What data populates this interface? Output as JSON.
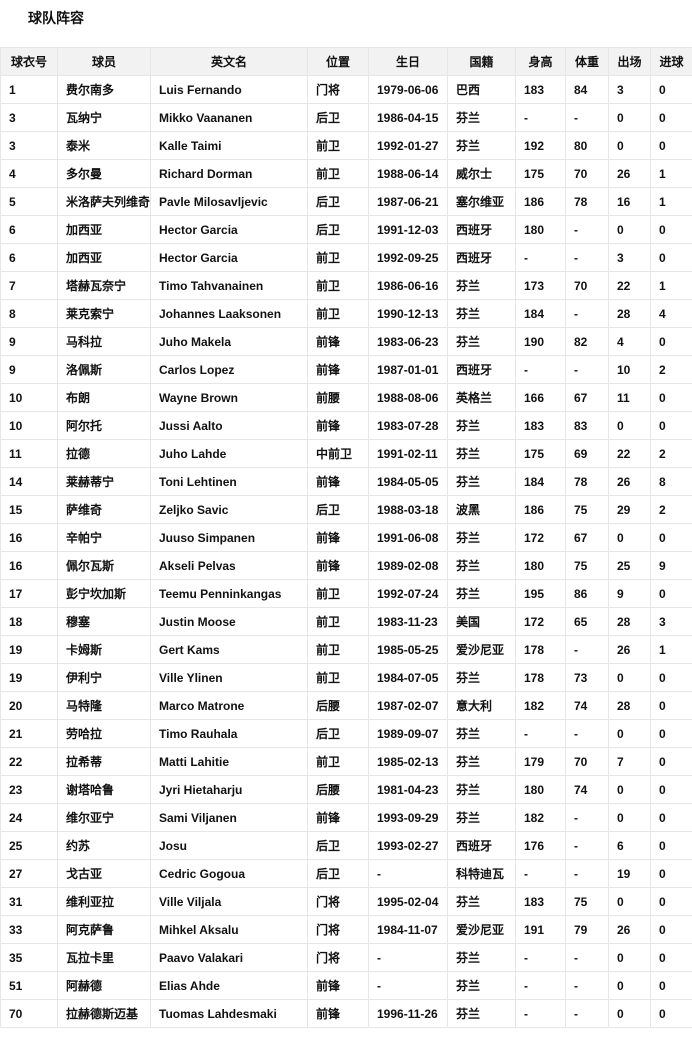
{
  "page": {
    "title": "球队阵容"
  },
  "roster_table": {
    "headers": [
      "球衣号",
      "球员",
      "英文名",
      "位置",
      "生日",
      "国籍",
      "身高",
      "体重",
      "出场",
      "进球"
    ],
    "rows": [
      [
        "1",
        "费尔南多",
        "Luis Fernando",
        "门将",
        "1979-06-06",
        "巴西",
        "183",
        "84",
        "3",
        "0"
      ],
      [
        "3",
        "瓦纳宁",
        "Mikko Vaananen",
        "后卫",
        "1986-04-15",
        "芬兰",
        "-",
        "-",
        "0",
        "0"
      ],
      [
        "3",
        "泰米",
        "Kalle Taimi",
        "前卫",
        "1992-01-27",
        "芬兰",
        "192",
        "80",
        "0",
        "0"
      ],
      [
        "4",
        "多尔曼",
        "Richard Dorman",
        "前卫",
        "1988-06-14",
        "威尔士",
        "175",
        "70",
        "26",
        "1"
      ],
      [
        "5",
        "米洛萨夫列维奇",
        "Pavle Milosavljevic",
        "后卫",
        "1987-06-21",
        "塞尔维亚",
        "186",
        "78",
        "16",
        "1"
      ],
      [
        "6",
        "加西亚",
        "Hector Garcia",
        "后卫",
        "1991-12-03",
        "西班牙",
        "180",
        "-",
        "0",
        "0"
      ],
      [
        "6",
        "加西亚",
        "Hector Garcia",
        "前卫",
        "1992-09-25",
        "西班牙",
        "-",
        "-",
        "3",
        "0"
      ],
      [
        "7",
        "塔赫瓦奈宁",
        "Timo Tahvanainen",
        "前卫",
        "1986-06-16",
        "芬兰",
        "173",
        "70",
        "22",
        "1"
      ],
      [
        "8",
        "莱克索宁",
        "Johannes Laaksonen",
        "前卫",
        "1990-12-13",
        "芬兰",
        "184",
        "-",
        "28",
        "4"
      ],
      [
        "9",
        "马科拉",
        "Juho Makela",
        "前锋",
        "1983-06-23",
        "芬兰",
        "190",
        "82",
        "4",
        "0"
      ],
      [
        "9",
        "洛佩斯",
        "Carlos Lopez",
        "前锋",
        "1987-01-01",
        "西班牙",
        "-",
        "-",
        "10",
        "2"
      ],
      [
        "10",
        "布朗",
        "Wayne Brown",
        "前腰",
        "1988-08-06",
        "英格兰",
        "166",
        "67",
        "11",
        "0"
      ],
      [
        "10",
        "阿尔托",
        "Jussi Aalto",
        "前锋",
        "1983-07-28",
        "芬兰",
        "183",
        "83",
        "0",
        "0"
      ],
      [
        "11",
        "拉德",
        "Juho Lahde",
        "中前卫",
        "1991-02-11",
        "芬兰",
        "175",
        "69",
        "22",
        "2"
      ],
      [
        "14",
        "莱赫蒂宁",
        "Toni Lehtinen",
        "前锋",
        "1984-05-05",
        "芬兰",
        "184",
        "78",
        "26",
        "8"
      ],
      [
        "15",
        "萨维奇",
        "Zeljko Savic",
        "后卫",
        "1988-03-18",
        "波黑",
        "186",
        "75",
        "29",
        "2"
      ],
      [
        "16",
        "辛帕宁",
        "Juuso Simpanen",
        "前锋",
        "1991-06-08",
        "芬兰",
        "172",
        "67",
        "0",
        "0"
      ],
      [
        "16",
        "佩尔瓦斯",
        "Akseli Pelvas",
        "前锋",
        "1989-02-08",
        "芬兰",
        "180",
        "75",
        "25",
        "9"
      ],
      [
        "17",
        "彭宁坎加斯",
        "Teemu Penninkangas",
        "前卫",
        "1992-07-24",
        "芬兰",
        "195",
        "86",
        "9",
        "0"
      ],
      [
        "18",
        "穆塞",
        "Justin Moose",
        "前卫",
        "1983-11-23",
        "美国",
        "172",
        "65",
        "28",
        "3"
      ],
      [
        "19",
        "卡姆斯",
        "Gert Kams",
        "前卫",
        "1985-05-25",
        "爱沙尼亚",
        "178",
        "-",
        "26",
        "1"
      ],
      [
        "19",
        "伊利宁",
        "Ville Ylinen",
        "前卫",
        "1984-07-05",
        "芬兰",
        "178",
        "73",
        "0",
        "0"
      ],
      [
        "20",
        "马特隆",
        "Marco Matrone",
        "后腰",
        "1987-02-07",
        "意大利",
        "182",
        "74",
        "28",
        "0"
      ],
      [
        "21",
        "劳哈拉",
        "Timo Rauhala",
        "后卫",
        "1989-09-07",
        "芬兰",
        "-",
        "-",
        "0",
        "0"
      ],
      [
        "22",
        "拉希蒂",
        "Matti Lahitie",
        "前卫",
        "1985-02-13",
        "芬兰",
        "179",
        "70",
        "7",
        "0"
      ],
      [
        "23",
        "谢塔哈鲁",
        "Jyri Hietaharju",
        "后腰",
        "1981-04-23",
        "芬兰",
        "180",
        "74",
        "0",
        "0"
      ],
      [
        "24",
        "维尔亚宁",
        "Sami Viljanen",
        "前锋",
        "1993-09-29",
        "芬兰",
        "182",
        "-",
        "0",
        "0"
      ],
      [
        "25",
        "约苏",
        "Josu",
        "后卫",
        "1993-02-27",
        "西班牙",
        "176",
        "-",
        "6",
        "0"
      ],
      [
        "27",
        "戈古亚",
        "Cedric Gogoua",
        "后卫",
        "-",
        "科特迪瓦",
        "-",
        "-",
        "19",
        "0"
      ],
      [
        "31",
        "维利亚拉",
        "Ville Viljala",
        "门将",
        "1995-02-04",
        "芬兰",
        "183",
        "75",
        "0",
        "0"
      ],
      [
        "33",
        "阿克萨鲁",
        "Mihkel Aksalu",
        "门将",
        "1984-11-07",
        "爱沙尼亚",
        "191",
        "79",
        "26",
        "0"
      ],
      [
        "35",
        "瓦拉卡里",
        "Paavo Valakari",
        "门将",
        "-",
        "芬兰",
        "-",
        "-",
        "0",
        "0"
      ],
      [
        "51",
        "阿赫德",
        "Elias Ahde",
        "前锋",
        "-",
        "芬兰",
        "-",
        "-",
        "0",
        "0"
      ],
      [
        "70",
        "拉赫德斯迈基",
        "Tuomas Lahdesmaki",
        "前锋",
        "1996-11-26",
        "芬兰",
        "-",
        "-",
        "0",
        "0"
      ]
    ]
  },
  "colors": {
    "header_background": "#f2f2f2",
    "border": "#e6e6e6",
    "text": "#111111",
    "row_background": "#ffffff"
  }
}
